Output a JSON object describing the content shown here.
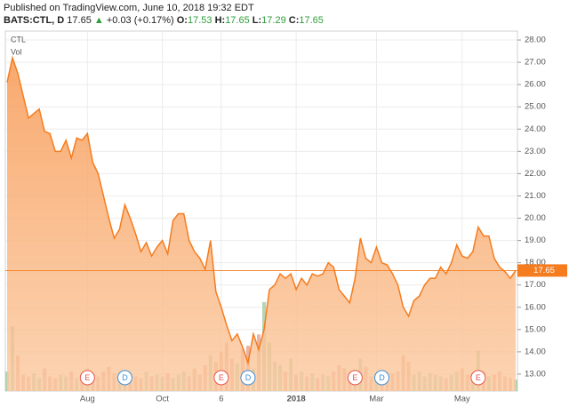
{
  "header": {
    "published": "Published on TradingView.com, June 10, 2018 19:32 EDT",
    "symbol": "BATS:CTL, D",
    "price": 17.65,
    "arrow": "▲",
    "change": "+0.03 (+0.17%)",
    "open_label": "O:",
    "open": 17.53,
    "high_label": "H:",
    "high": 17.65,
    "low_label": "L:",
    "low": 17.29,
    "close_label": "C:",
    "close": 17.65
  },
  "chart_data": {
    "type": "area",
    "legend": "CTL",
    "categories": [
      null,
      null,
      null,
      null,
      null,
      null,
      null,
      null,
      null,
      null,
      null,
      null,
      null,
      null,
      null,
      "Aug",
      null,
      null,
      null,
      null,
      null,
      null,
      null,
      null,
      null,
      null,
      null,
      null,
      null,
      "Oct",
      null,
      null,
      null,
      null,
      null,
      null,
      null,
      null,
      null,
      null,
      "6",
      null,
      null,
      null,
      null,
      null,
      null,
      null,
      null,
      null,
      null,
      null,
      null,
      null,
      "2018",
      null,
      null,
      null,
      null,
      null,
      null,
      null,
      null,
      null,
      null,
      null,
      null,
      null,
      null,
      "Mar",
      null,
      null,
      null,
      null,
      null,
      null,
      null,
      null,
      null,
      null,
      null,
      null,
      null,
      null,
      null,
      "May",
      null,
      null,
      null,
      null,
      null,
      null,
      null,
      null,
      null,
      null
    ],
    "series": [
      {
        "name": "CTL",
        "color": "#f57c1f",
        "values": [
          26.1,
          27.2,
          26.5,
          25.5,
          24.5,
          24.7,
          24.9,
          23.9,
          23.8,
          23.0,
          23.0,
          23.5,
          22.7,
          23.6,
          23.5,
          23.8,
          22.5,
          22.0,
          21.0,
          20.0,
          19.1,
          19.5,
          20.6,
          20.0,
          19.3,
          18.5,
          18.9,
          18.3,
          18.7,
          19.0,
          18.4,
          19.9,
          20.2,
          20.2,
          19.0,
          18.5,
          18.2,
          17.7,
          19.0,
          16.7,
          16.0,
          15.2,
          14.5,
          14.8,
          14.2,
          13.5,
          14.8,
          14.1,
          15.0,
          16.8,
          17.0,
          17.5,
          17.3,
          17.5,
          16.8,
          17.3,
          17.0,
          17.5,
          17.4,
          17.5,
          18.0,
          17.8,
          16.8,
          16.5,
          16.2,
          17.3,
          19.1,
          18.2,
          18.0,
          18.7,
          18.0,
          17.9,
          17.5,
          17.0,
          16.0,
          15.6,
          16.3,
          16.5,
          17.0,
          17.3,
          17.3,
          17.8,
          17.5,
          18.0,
          18.8,
          18.3,
          18.2,
          18.5,
          19.6,
          19.2,
          19.2,
          18.2,
          17.8,
          17.6,
          17.3,
          17.65
        ]
      }
    ],
    "volume": {
      "name": "Vol",
      "up_color": "#9cc79a",
      "down_color": "#e39a87",
      "values": [
        12,
        40,
        22,
        10,
        9,
        11,
        8,
        14,
        9,
        8,
        10,
        9,
        12,
        8,
        9,
        14,
        10,
        9,
        12,
        15,
        11,
        9,
        10,
        8,
        9,
        8,
        12,
        9,
        10,
        9,
        11,
        8,
        10,
        12,
        9,
        14,
        10,
        16,
        22,
        18,
        24,
        30,
        20,
        17,
        26,
        28,
        14,
        35,
        55,
        30,
        18,
        16,
        12,
        20,
        10,
        12,
        9,
        11,
        8,
        10,
        9,
        12,
        16,
        14,
        10,
        11,
        20,
        15,
        9,
        8,
        10,
        9,
        11,
        12,
        22,
        18,
        10,
        12,
        9,
        11,
        10,
        9,
        8,
        10,
        12,
        14,
        10,
        11,
        25,
        12,
        9,
        10,
        12,
        9,
        8,
        7
      ]
    },
    "last_price": {
      "value": 17.65,
      "color": "#f57c1f"
    },
    "events": [
      {
        "index": 15,
        "label": "E",
        "color": "#e8524a"
      },
      {
        "index": 22,
        "label": "D",
        "color": "#3d8fd6"
      },
      {
        "index": 40,
        "label": "E",
        "color": "#e8524a"
      },
      {
        "index": 45,
        "label": "D",
        "color": "#3d8fd6"
      },
      {
        "index": 65,
        "label": "E",
        "color": "#e8524a"
      },
      {
        "index": 70,
        "label": "D",
        "color": "#3d8fd6"
      },
      {
        "index": 88,
        "label": "E",
        "color": "#e8524a"
      }
    ],
    "ylim": [
      12.24,
      28.4
    ],
    "yticks": [
      {
        "value": 13,
        "label": "13.00"
      },
      {
        "value": 14,
        "label": "14.00"
      },
      {
        "value": 15,
        "label": "15.00"
      },
      {
        "value": 16,
        "label": "16.00"
      },
      {
        "value": 17,
        "label": "17.00"
      },
      {
        "value": 18,
        "label": "18.00"
      },
      {
        "value": 19,
        "label": "19.00"
      },
      {
        "value": 20,
        "label": "20.00"
      },
      {
        "value": 21,
        "label": "21.00"
      },
      {
        "value": 22,
        "label": "22.00"
      },
      {
        "value": 23,
        "label": "23.00"
      },
      {
        "value": 24,
        "label": "24.00"
      },
      {
        "value": 25,
        "label": "25.00"
      },
      {
        "value": 26,
        "label": "26.00"
      },
      {
        "value": 27,
        "label": "27.00"
      },
      {
        "value": 28,
        "label": "28.00"
      }
    ],
    "grid": true
  }
}
